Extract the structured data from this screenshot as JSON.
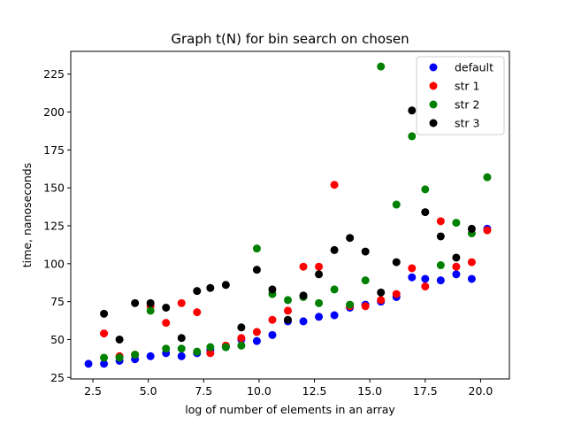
{
  "chart_data": {
    "type": "scatter",
    "title": "Graph t(N) for bin search on chosen",
    "xlabel": "log of number of elements in an array",
    "ylabel": "time, nanoseconds",
    "xlim": [
      1.5,
      21.3
    ],
    "ylim": [
      24,
      240
    ],
    "xticks": [
      2.5,
      5.0,
      7.5,
      10.0,
      12.5,
      15.0,
      17.5,
      20.0
    ],
    "xtick_labels": [
      "2.5",
      "5.0",
      "7.5",
      "10.0",
      "12.5",
      "15.0",
      "17.5",
      "20.0"
    ],
    "yticks": [
      25,
      50,
      75,
      100,
      125,
      150,
      175,
      200,
      225
    ],
    "ytick_labels": [
      "25",
      "50",
      "75",
      "100",
      "125",
      "150",
      "175",
      "200",
      "225"
    ],
    "grid": false,
    "legend_position": "top-right",
    "series": [
      {
        "name": "default",
        "color": "#0000ff",
        "x": [
          2.3,
          3.0,
          3.7,
          4.4,
          5.1,
          5.8,
          6.5,
          7.2,
          7.8,
          8.5,
          9.2,
          9.9,
          10.6,
          11.3,
          12.0,
          12.7,
          13.4,
          14.1,
          14.8,
          15.5,
          16.2,
          16.9,
          17.5,
          18.2,
          18.9,
          19.6,
          20.3
        ],
        "y": [
          34,
          34,
          36,
          37,
          39,
          41,
          39,
          41,
          43,
          45,
          50,
          49,
          53,
          62,
          62,
          65,
          66,
          71,
          73,
          75,
          78,
          91,
          90,
          89,
          93,
          90,
          123
        ]
      },
      {
        "name": "str 1",
        "color": "#ff0000",
        "x": [
          3.0,
          3.7,
          4.4,
          5.1,
          5.8,
          6.5,
          7.2,
          7.8,
          8.5,
          9.2,
          9.9,
          10.6,
          11.3,
          12.0,
          12.7,
          13.4,
          14.1,
          14.8,
          15.5,
          16.2,
          16.9,
          17.5,
          18.2,
          18.9,
          19.6,
          20.3
        ],
        "y": [
          54,
          39,
          40,
          72,
          61,
          74,
          68,
          41,
          46,
          51,
          55,
          63,
          69,
          98,
          98,
          152,
          72,
          72,
          76,
          80,
          97,
          85,
          128,
          98,
          101,
          122
        ]
      },
      {
        "name": "str 2",
        "color": "#008000",
        "x": [
          3.0,
          3.7,
          4.4,
          5.1,
          5.8,
          6.5,
          7.2,
          7.8,
          8.5,
          9.2,
          9.9,
          10.6,
          11.3,
          12.0,
          12.7,
          13.4,
          14.1,
          14.8,
          15.5,
          16.2,
          16.9,
          17.5,
          18.2,
          18.9,
          19.6,
          20.3
        ],
        "y": [
          38,
          38,
          40,
          69,
          44,
          44,
          42,
          45,
          45,
          46,
          110,
          80,
          76,
          78,
          74,
          83,
          73,
          89,
          230,
          139,
          184,
          149,
          99,
          127,
          120,
          157
        ]
      },
      {
        "name": "str 3",
        "color": "#000000",
        "x": [
          3.0,
          3.7,
          4.4,
          5.1,
          5.8,
          6.5,
          7.2,
          7.8,
          8.5,
          9.2,
          9.9,
          10.6,
          11.3,
          12.0,
          12.7,
          13.4,
          14.1,
          14.8,
          15.5,
          16.2,
          16.9,
          17.5,
          18.2,
          18.9,
          19.6
        ],
        "y": [
          67,
          50,
          74,
          74,
          71,
          51,
          82,
          84,
          86,
          58,
          96,
          83,
          63,
          79,
          93,
          109,
          117,
          108,
          81,
          101,
          201,
          134,
          118,
          104,
          123
        ]
      }
    ]
  }
}
